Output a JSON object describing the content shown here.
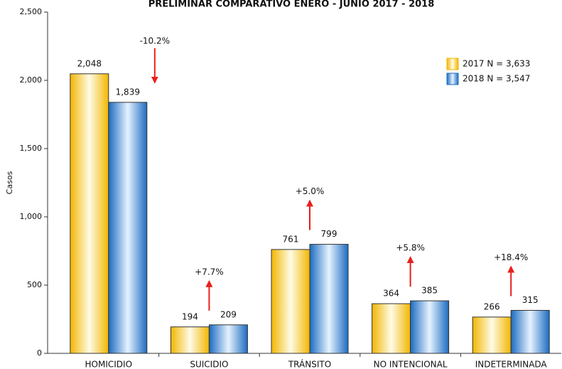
{
  "chart_data": {
    "type": "bar",
    "title": "PRELIMINAR COMPARATIVO ENERO - JUNIO 2017 - 2018",
    "y_label": "Casos",
    "categories": [
      "HOMICIDIO",
      "SUICIDIO",
      "TRÁNSITO",
      "NO INTENCIONAL",
      "INDETERMINADA"
    ],
    "series": [
      {
        "name": "2017 N = 3,633",
        "color": "#f2b600",
        "values": [
          2048,
          194,
          761,
          364,
          266
        ],
        "value_labels": [
          "2,048",
          "194",
          "761",
          "364",
          "266"
        ]
      },
      {
        "name": "2018 N = 3,547",
        "color": "#1c6cc0",
        "values": [
          1839,
          209,
          799,
          385,
          315
        ],
        "value_labels": [
          "1,839",
          "209",
          "799",
          "385",
          "315"
        ]
      }
    ],
    "annotations": [
      "-10.2%",
      "+7.7%",
      "+5.0%",
      "+5.8%",
      "+18.4%"
    ],
    "ylim": [
      0,
      2500
    ],
    "yticks": [
      0,
      500,
      {
        "value": 1000,
        "label": "1,000"
      },
      {
        "value": 1500,
        "label": "1,500"
      },
      {
        "value": 2000,
        "label": "2,000"
      },
      {
        "value": 2500,
        "label": "2,500"
      }
    ],
    "legend": "upper right"
  }
}
